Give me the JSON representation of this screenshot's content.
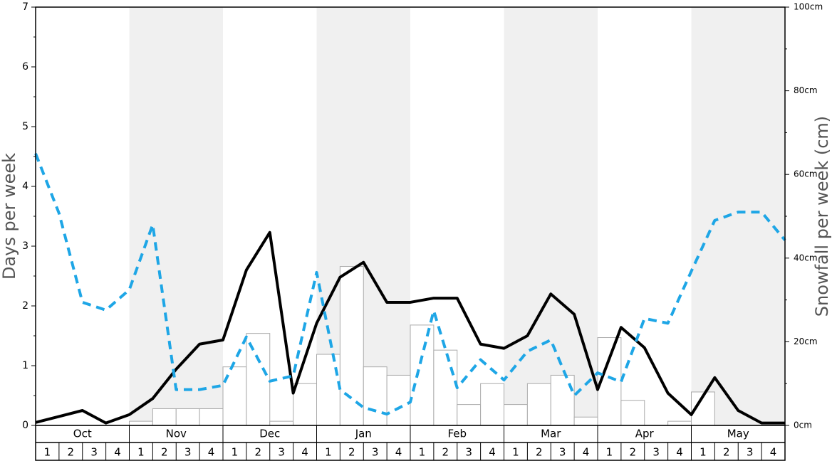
{
  "chart_data": {
    "type": "bar",
    "ylabel": "Days per week",
    "y2label": "Snowfall per week (cm)",
    "months": [
      "Oct",
      "Nov",
      "Dec",
      "Jan",
      "Feb",
      "Mar",
      "Apr",
      "May"
    ],
    "categories": [
      "1",
      "2",
      "3",
      "4",
      "1",
      "2",
      "3",
      "4",
      "1",
      "2",
      "3",
      "4",
      "1",
      "2",
      "3",
      "4",
      "1",
      "2",
      "3",
      "4",
      "1",
      "2",
      "3",
      "4",
      "1",
      "2",
      "3",
      "4",
      "1",
      "2",
      "3",
      "4"
    ],
    "xlim": [
      0,
      32
    ],
    "ylim": [
      0,
      7
    ],
    "yticks": [
      0,
      1,
      2,
      3,
      4,
      5,
      6,
      7
    ],
    "y2lim": [
      0,
      100
    ],
    "y2ticks": [
      {
        "value": 0,
        "label": "0cm"
      },
      {
        "value": 20,
        "label": "20cm"
      },
      {
        "value": 40,
        "label": "40cm"
      },
      {
        "value": 60,
        "label": "60cm"
      },
      {
        "value": 80,
        "label": "80cm"
      },
      {
        "value": 100,
        "label": "100cm"
      }
    ],
    "band_color": "#f0f0f0",
    "bars": {
      "axis": "y2",
      "color": "#ffffff",
      "edge": "#aaaaaa",
      "values": [
        0,
        0,
        0,
        0,
        1,
        4,
        4,
        4,
        14,
        22,
        1,
        10,
        17,
        38,
        14,
        12,
        24,
        18,
        5,
        10,
        5,
        10,
        12,
        2,
        21,
        6,
        0,
        1,
        8,
        0,
        0,
        0
      ]
    },
    "series": [
      {
        "color": "#000000",
        "dash": false,
        "x": [
          0,
          1,
          2,
          3,
          4,
          5,
          6,
          7,
          8,
          9,
          10,
          11,
          12,
          13,
          14,
          15,
          16,
          17,
          18,
          19,
          20,
          21,
          22,
          23,
          24,
          25,
          26,
          27,
          28,
          29,
          30,
          31,
          32
        ],
        "values": [
          0.05,
          0.15,
          0.25,
          0.04,
          0.18,
          0.45,
          0.94,
          1.36,
          1.43,
          2.6,
          3.23,
          0.54,
          1.71,
          2.48,
          2.73,
          2.06,
          2.06,
          2.13,
          2.13,
          1.36,
          1.29,
          1.5,
          2.2,
          1.86,
          0.6,
          1.64,
          1.3,
          0.54,
          0.18,
          0.8,
          0.25,
          0.04,
          0.04
        ]
      },
      {
        "color": "#1ea6e6",
        "dash": true,
        "x": [
          0,
          1,
          2,
          3,
          4,
          5,
          6,
          7,
          8,
          9,
          10,
          11,
          12,
          13,
          14,
          15,
          16,
          17,
          18,
          19,
          20,
          21,
          22,
          23,
          24,
          25,
          26,
          27,
          28,
          29,
          30,
          31,
          32
        ],
        "values": [
          4.55,
          3.55,
          2.06,
          1.93,
          2.27,
          3.36,
          0.6,
          0.6,
          0.67,
          1.48,
          0.74,
          0.83,
          2.56,
          0.6,
          0.3,
          0.19,
          0.39,
          1.92,
          0.63,
          1.1,
          0.76,
          1.24,
          1.43,
          0.5,
          0.88,
          0.73,
          1.79,
          1.71,
          2.58,
          3.43,
          3.57,
          3.57,
          3.1
        ]
      }
    ]
  }
}
